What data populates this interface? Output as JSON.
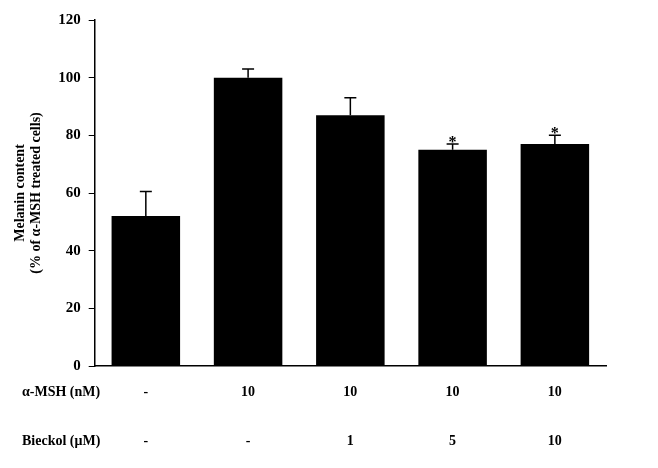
{
  "chart_data": {
    "type": "bar",
    "y_label": [
      "Melanin content",
      "(% of α-MSH treated cells)"
    ],
    "row_labels": [
      "α-MSH (nM)",
      "Bieckol (μM)"
    ],
    "categories": [
      [
        "-",
        "-"
      ],
      [
        "10",
        "-"
      ],
      [
        "10",
        "1"
      ],
      [
        "10",
        "5"
      ],
      [
        "10",
        "10"
      ]
    ],
    "values": [
      52,
      100,
      87,
      75,
      77
    ],
    "errors": [
      8.5,
      3,
      6,
      2,
      3
    ],
    "annotations": [
      {
        "index": 3,
        "text": "*"
      },
      {
        "index": 4,
        "text": "*"
      }
    ],
    "color": "#000000",
    "ylim": [
      0,
      120
    ],
    "yticks": [
      0,
      20,
      40,
      60,
      80,
      100,
      120
    ],
    "grid": false
  }
}
